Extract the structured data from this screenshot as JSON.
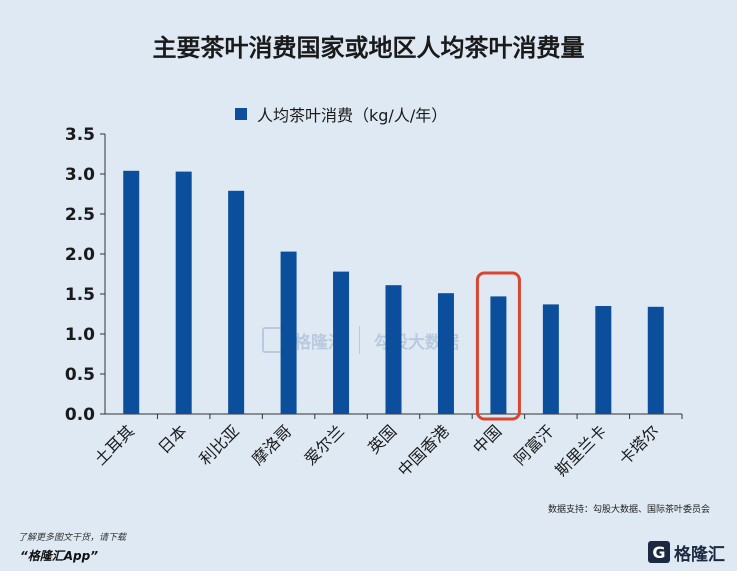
{
  "chart_data": {
    "type": "bar",
    "title": "主要茶叶消费国家或地区人均茶叶消费量",
    "categories": [
      "土耳其",
      "日本",
      "利比亚",
      "摩洛哥",
      "爱尔兰",
      "英国",
      "中国香港",
      "中国",
      "阿富汗",
      "斯里兰卡",
      "卡塔尔"
    ],
    "series": [
      {
        "name": "人均茶叶消费（kg/人/年）",
        "values": [
          3.04,
          3.03,
          2.79,
          2.03,
          1.78,
          1.61,
          1.51,
          1.47,
          1.37,
          1.35,
          1.34
        ]
      }
    ],
    "ylim": [
      0,
      3.5
    ],
    "yticks": [
      "0.0",
      "0.5",
      "1.0",
      "1.5",
      "2.0",
      "2.5",
      "3.0",
      "3.5"
    ],
    "highlight_category": "中国",
    "grid": false,
    "legend_position": "top",
    "colors": {
      "bar": "#0b4f9c",
      "highlight_box": "#d9452f",
      "background": "#dfe9f3"
    }
  },
  "source_text": "数据支持：勾股大数据、国际茶叶委员会",
  "footer": {
    "note": "了解更多图文干货，请下载",
    "app_name": "“格隆汇App”",
    "logo_text": "格隆汇",
    "logo_icon": "gelonghui-logo-icon"
  },
  "watermark": {
    "left_text": "格隆汇",
    "right_text": "勾股大数据"
  }
}
